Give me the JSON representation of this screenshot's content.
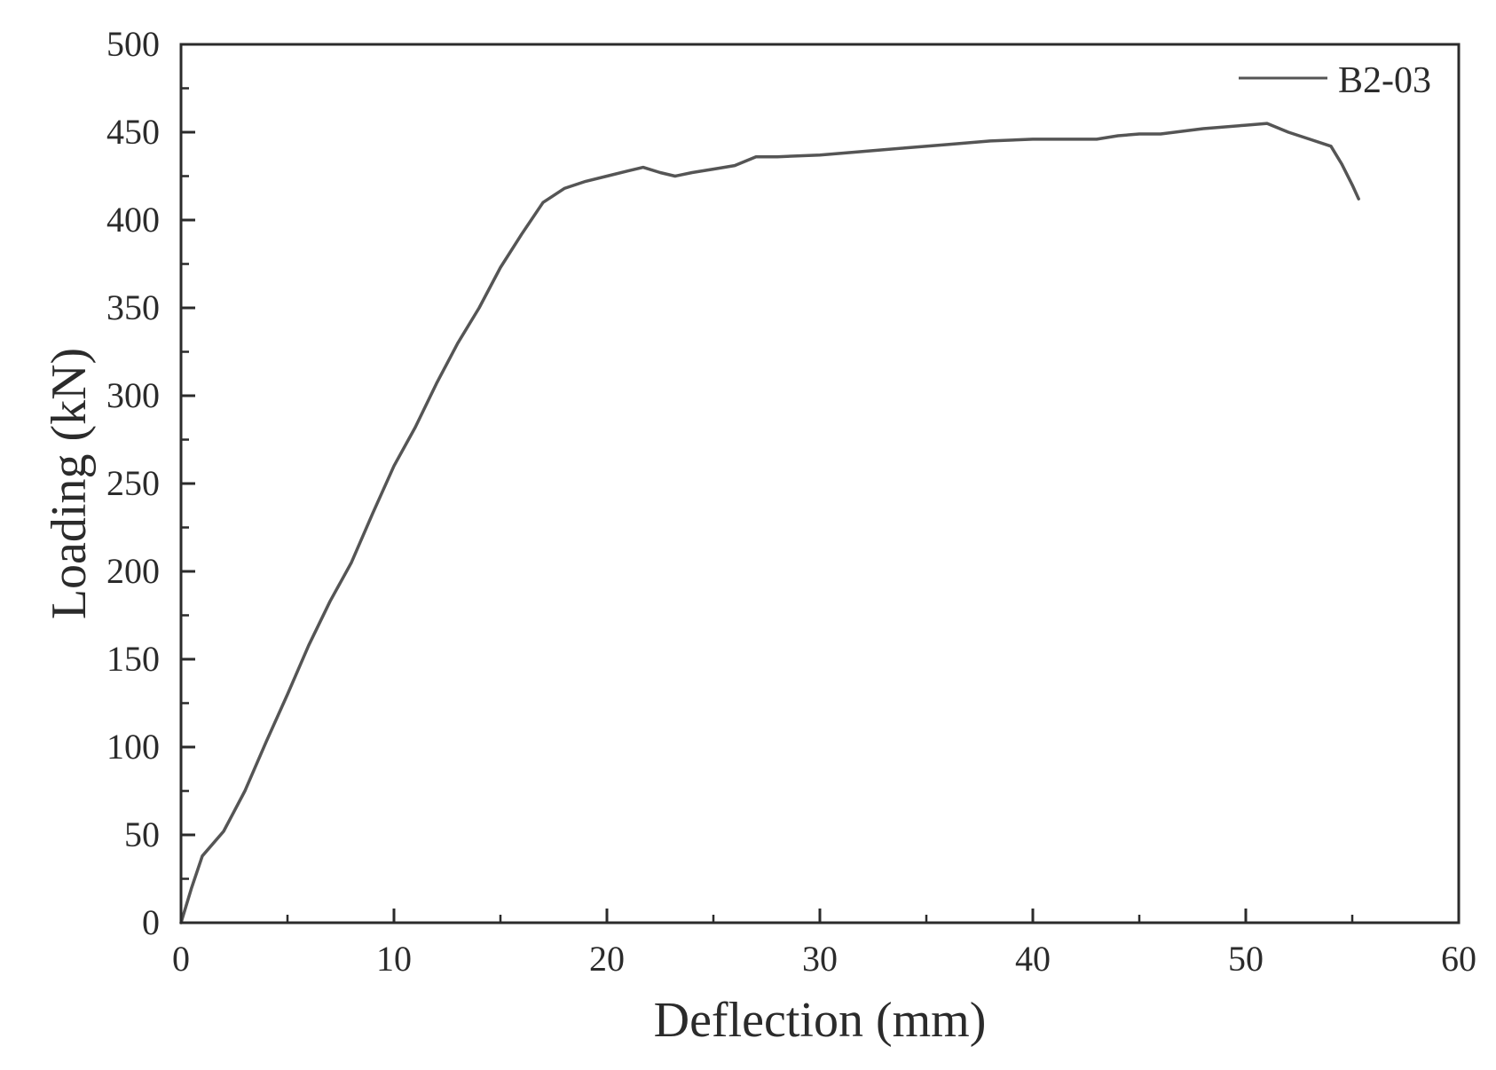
{
  "chart_data": {
    "type": "line",
    "title": "",
    "xlabel": "Deflection (mm)",
    "ylabel": "Loading (kN)",
    "xlim": [
      0,
      60
    ],
    "ylim": [
      0,
      500
    ],
    "xticks": [
      0,
      10,
      20,
      30,
      40,
      50,
      60
    ],
    "yticks": [
      0,
      50,
      100,
      150,
      200,
      250,
      300,
      350,
      400,
      450,
      500
    ],
    "x_minor_step": 5,
    "y_minor_step": 25,
    "grid": false,
    "legend_position": "top-right",
    "line_color": "#555555",
    "series": [
      {
        "name": "B2-03",
        "points": [
          [
            0,
            0
          ],
          [
            0.5,
            20
          ],
          [
            1,
            38
          ],
          [
            2,
            52
          ],
          [
            3,
            75
          ],
          [
            4,
            103
          ],
          [
            5,
            130
          ],
          [
            6,
            158
          ],
          [
            7,
            183
          ],
          [
            8,
            205
          ],
          [
            9,
            233
          ],
          [
            10,
            260
          ],
          [
            11,
            282
          ],
          [
            12,
            307
          ],
          [
            13,
            330
          ],
          [
            14,
            350
          ],
          [
            15,
            373
          ],
          [
            16,
            392
          ],
          [
            17,
            410
          ],
          [
            18,
            418
          ],
          [
            19,
            422
          ],
          [
            20,
            425
          ],
          [
            21,
            428
          ],
          [
            21.7,
            430
          ],
          [
            22.5,
            427
          ],
          [
            23.2,
            425
          ],
          [
            24,
            427
          ],
          [
            25,
            429
          ],
          [
            26,
            431
          ],
          [
            27,
            436
          ],
          [
            28,
            436
          ],
          [
            30,
            437
          ],
          [
            32,
            439
          ],
          [
            34,
            441
          ],
          [
            36,
            443
          ],
          [
            38,
            445
          ],
          [
            40,
            446
          ],
          [
            42,
            446
          ],
          [
            43,
            446
          ],
          [
            44,
            448
          ],
          [
            45,
            449
          ],
          [
            46,
            449
          ],
          [
            48,
            452
          ],
          [
            50,
            454
          ],
          [
            51,
            455
          ],
          [
            52,
            450
          ],
          [
            53,
            446
          ],
          [
            54,
            442
          ],
          [
            54.5,
            432
          ],
          [
            55,
            420
          ],
          [
            55.3,
            412
          ]
        ]
      }
    ]
  }
}
